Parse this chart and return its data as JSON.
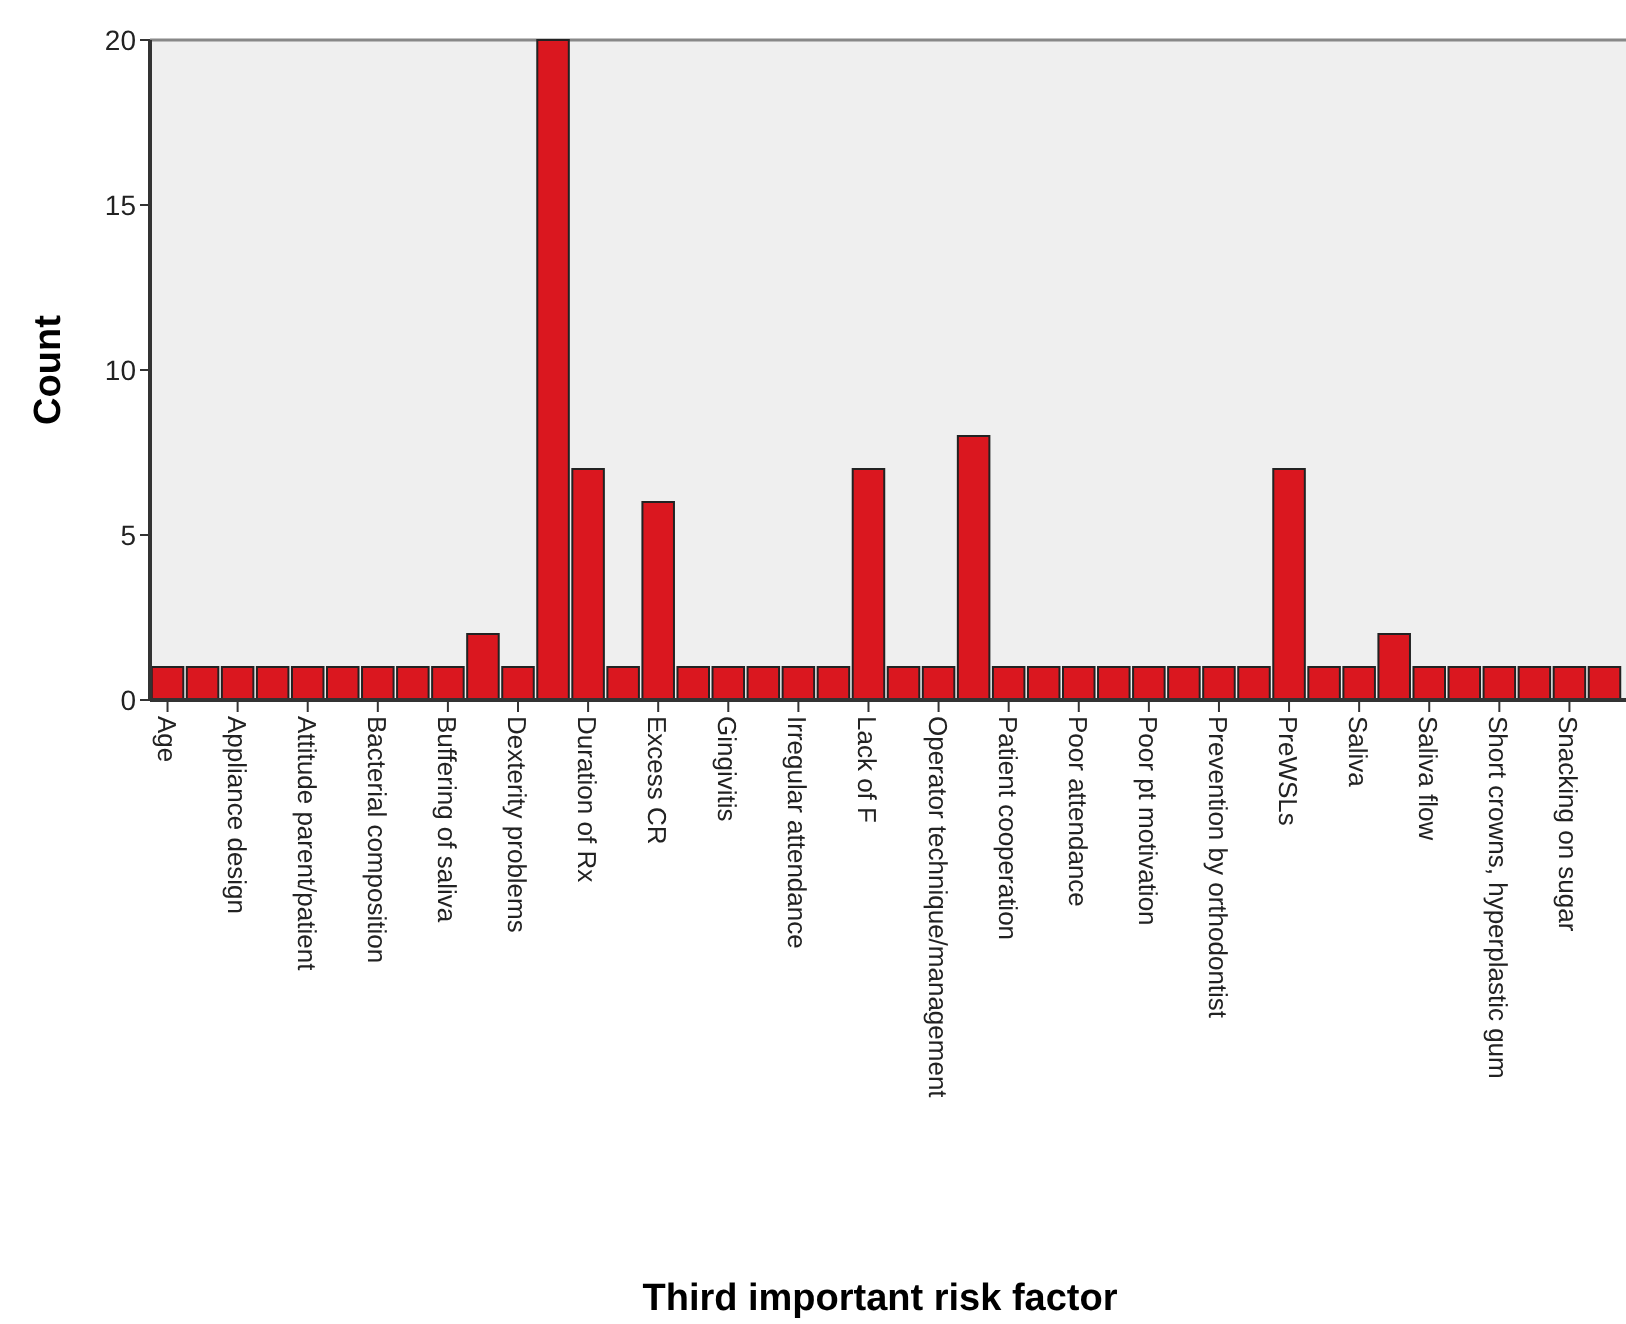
{
  "chart_data": {
    "type": "bar",
    "xlabel": "Third important risk factor",
    "ylabel": "Count",
    "categories": [
      "Age",
      null,
      "Appliance design",
      null,
      "Attitude parent/patient",
      null,
      "Bacterial composition",
      null,
      "Buffering of saliva",
      null,
      "Dexterity problems",
      null,
      "Duration of Rx",
      null,
      "Excess CR",
      null,
      "Gingivitis",
      null,
      "Irregular attendance",
      null,
      "Lack of F",
      null,
      "Operator technique/management",
      null,
      "Patient cooperation",
      null,
      "Poor attendance",
      null,
      "Poor pt motivation",
      null,
      "Prevention by orthodontist",
      null,
      "PreWSLs",
      null,
      "Saliva",
      null,
      "Saliva flow",
      null,
      "Short crowns, hyperplastic gum",
      null,
      "Snacking on sugar",
      null
    ],
    "values": [
      1,
      1,
      1,
      1,
      1,
      1,
      1,
      1,
      1,
      2,
      1,
      20,
      7,
      1,
      6,
      1,
      1,
      1,
      1,
      1,
      7,
      1,
      1,
      8,
      1,
      1,
      1,
      1,
      1,
      1,
      1,
      1,
      7,
      1,
      1,
      2,
      1,
      1,
      1,
      1,
      1,
      1
    ],
    "color": "#da171f",
    "ylim": [
      0,
      20
    ],
    "yticks": [
      0,
      5,
      10,
      15,
      20
    ],
    "grid": false
  }
}
